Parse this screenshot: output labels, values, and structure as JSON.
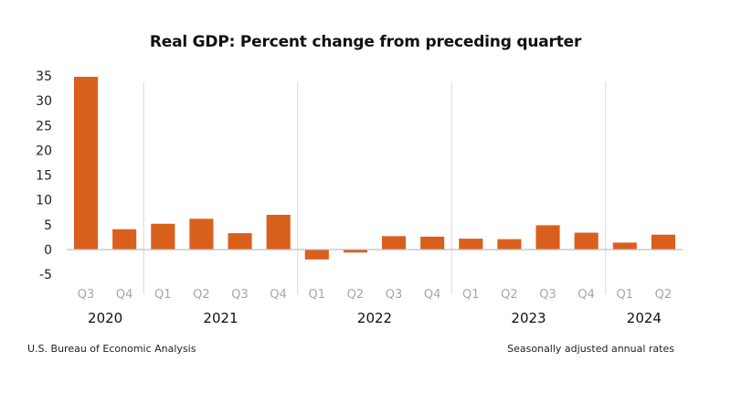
{
  "chart_data": {
    "type": "bar",
    "title": "Real GDP: Percent change from preceding quarter",
    "xlabel": "",
    "ylabel": "",
    "ylim": [
      -5,
      35
    ],
    "yticks": [
      35,
      30,
      25,
      20,
      15,
      10,
      5,
      0,
      -5
    ],
    "grid": false,
    "color": "#D9601C",
    "categories": [
      "Q3",
      "Q4",
      "Q1",
      "Q2",
      "Q3",
      "Q4",
      "Q1",
      "Q2",
      "Q3",
      "Q4",
      "Q1",
      "Q2",
      "Q3",
      "Q4",
      "Q1",
      "Q2"
    ],
    "groups": [
      {
        "label": "2020",
        "count": 2
      },
      {
        "label": "2021",
        "count": 4
      },
      {
        "label": "2022",
        "count": 4
      },
      {
        "label": "2023",
        "count": 4
      },
      {
        "label": "2024",
        "count": 2
      }
    ],
    "values": [
      34.8,
      4.1,
      5.2,
      6.2,
      3.3,
      7.0,
      -2.0,
      -0.6,
      2.7,
      2.6,
      2.2,
      2.1,
      4.9,
      3.4,
      1.4,
      3.0
    ],
    "source": "U.S. Bureau of Economic Analysis",
    "note": "Seasonally adjusted annual rates"
  }
}
